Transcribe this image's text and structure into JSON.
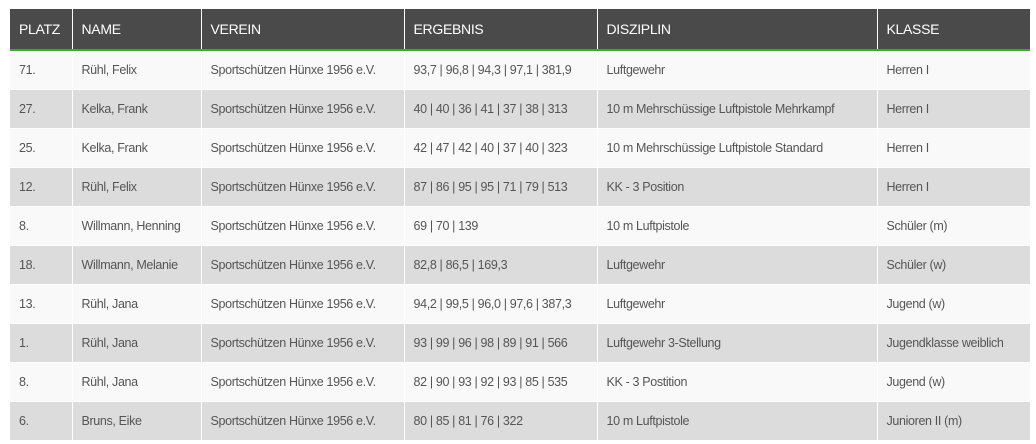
{
  "table": {
    "headers": [
      "PLATZ",
      "NAME",
      "VEREIN",
      "ERGEBNIS",
      "DISZIPLIN",
      "KLASSE"
    ],
    "rows": [
      [
        "71.",
        "Rühl, Felix",
        "Sportschützen Hünxe 1956 e.V.",
        "93,7 | 96,8 | 94,3 | 97,1 | 381,9",
        "Luftgewehr",
        "Herren I"
      ],
      [
        "27.",
        "Kelka, Frank",
        "Sportschützen Hünxe 1956 e.V.",
        "40 | 40 | 36 | 41 | 37 | 38 | 313",
        "10 m Mehrschüssige Luftpistole Mehrkampf",
        "Herren I"
      ],
      [
        "25.",
        "Kelka, Frank",
        "Sportschützen Hünxe 1956 e.V.",
        "42 | 47 | 42 | 40 | 37 | 40 | 323",
        "10 m Mehrschüssige Luftpistole Standard",
        "Herren I"
      ],
      [
        "12.",
        "Rühl, Felix",
        "Sportschützen Hünxe 1956 e.V.",
        "87 | 86 | 95 | 95 | 71 | 79 | 513",
        "KK - 3 Position",
        "Herren I"
      ],
      [
        "8.",
        "Willmann, Henning",
        "Sportschützen Hünxe 1956 e.V.",
        "69 | 70 | 139",
        "10 m Luftpistole",
        "Schüler (m)"
      ],
      [
        "18.",
        "Willmann, Melanie",
        "Sportschützen Hünxe 1956 e.V.",
        "82,8 | 86,5 | 169,3",
        "Luftgewehr",
        "Schüler (w)"
      ],
      [
        "13.",
        "Rühl, Jana",
        "Sportschützen Hünxe 1956 e.V.",
        "94,2 | 99,5 | 96,0 | 97,6 | 387,3",
        "Luftgewehr",
        "Jugend (w)"
      ],
      [
        "1.",
        "Rühl, Jana",
        "Sportschützen Hünxe 1956 e.V.",
        "93 | 99 | 96 | 98 | 89 | 91 | 566",
        "Luftgewehr 3-Stellung",
        "Jugendklasse weiblich"
      ],
      [
        "8.",
        "Rühl, Jana",
        "Sportschützen Hünxe 1956 e.V.",
        "82 | 90 | 93 | 92 | 93 | 85 | 535",
        "KK - 3 Postition",
        "Jugend (w)"
      ],
      [
        "6.",
        "Bruns, Eike",
        "Sportschützen Hünxe 1956 e.V.",
        "80 | 85 | 81 | 76 | 322",
        "10 m Luftpistole",
        "Junioren II (m)"
      ]
    ]
  },
  "colors": {
    "header_bg": "#4a4a4a",
    "accent": "#3fa535",
    "row_odd": "#f9f9f9",
    "row_even": "#dcdcdc"
  }
}
